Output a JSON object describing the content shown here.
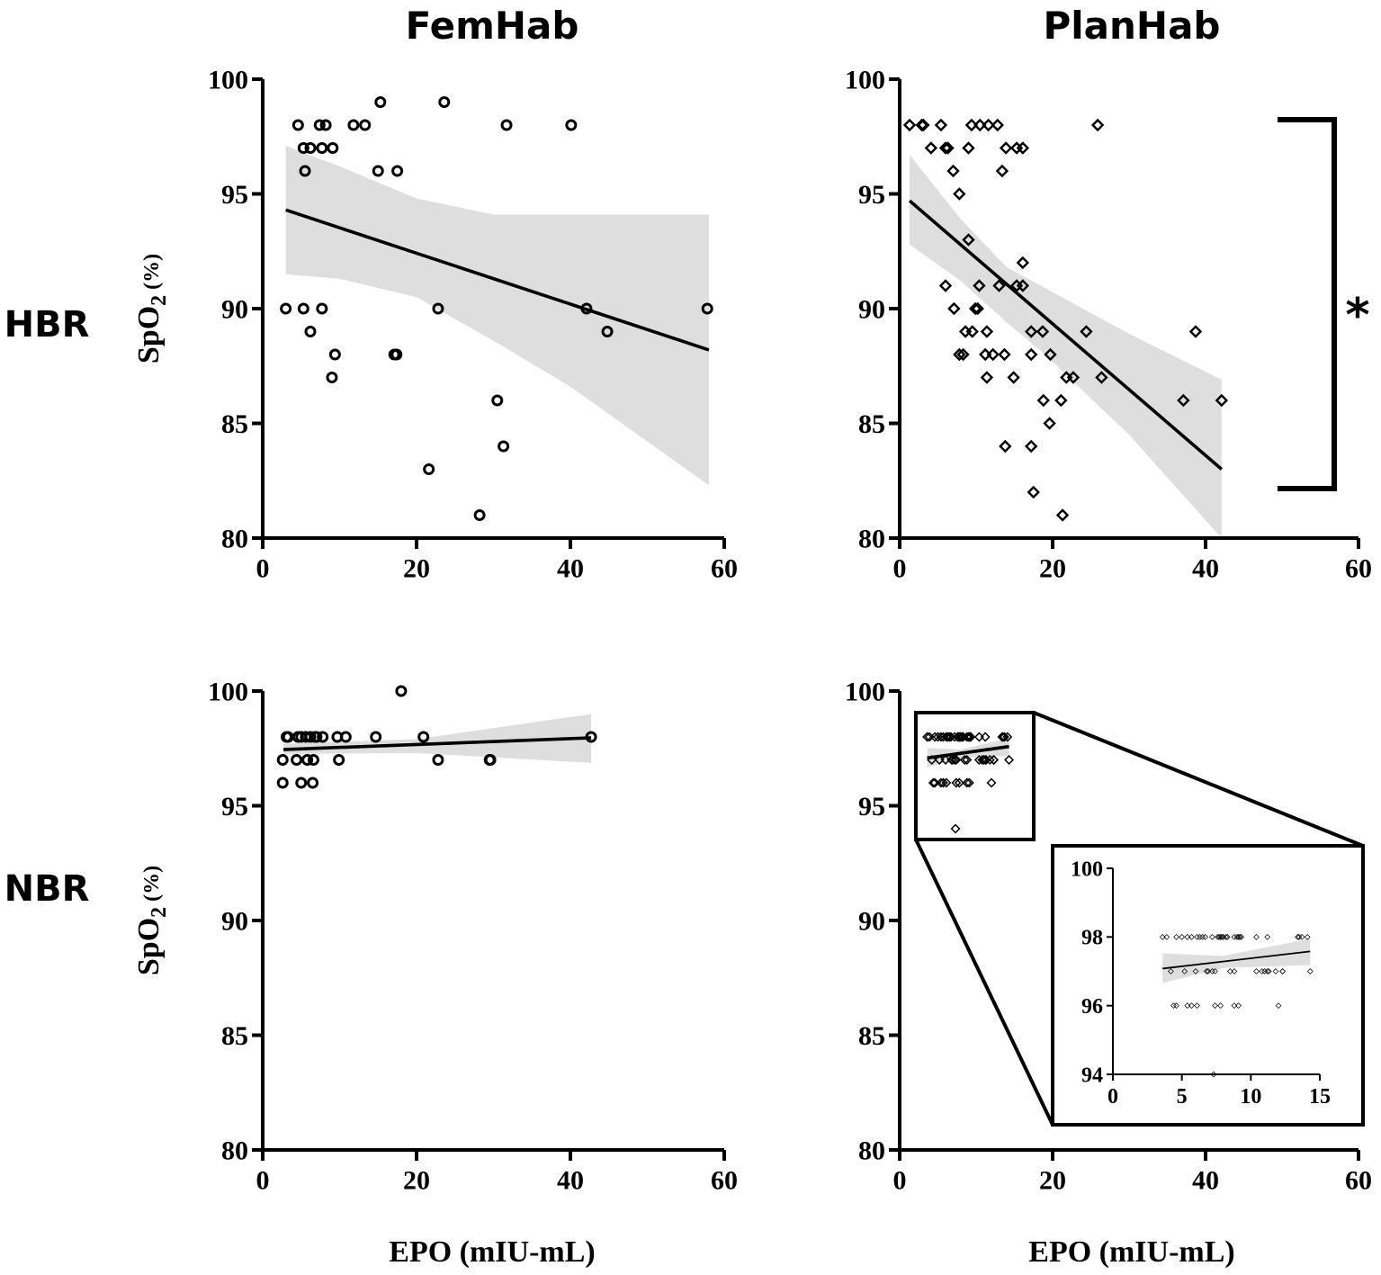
{
  "columns": [
    "FemHab",
    "PlanHab"
  ],
  "rows": [
    "HBR",
    "NBR"
  ],
  "ylabel_main": "SpO",
  "ylabel_sub": "2",
  "ylabel_unit": " (%)",
  "xlabel": "EPO (mIU-mL)",
  "significance": "*",
  "colors": {
    "ink": "#000000",
    "band": "#dedede"
  },
  "chart_data": [
    {
      "id": "femhab-hbr",
      "type": "scatter",
      "marker": "circle",
      "xlim": [
        0,
        60
      ],
      "ylim": [
        80,
        100
      ],
      "xticks": [
        0,
        20,
        40,
        60
      ],
      "yticks": [
        80,
        85,
        90,
        95,
        100
      ],
      "points": [
        [
          3,
          90
        ],
        [
          4.6,
          98
        ],
        [
          5.3,
          97
        ],
        [
          5.5,
          96
        ],
        [
          5.3,
          90
        ],
        [
          6.2,
          97
        ],
        [
          6.2,
          89
        ],
        [
          7.4,
          98
        ],
        [
          8.2,
          98
        ],
        [
          7.7,
          97
        ],
        [
          7.7,
          90
        ],
        [
          9.1,
          97
        ],
        [
          9.4,
          88
        ],
        [
          9,
          87
        ],
        [
          11.8,
          98
        ],
        [
          13.3,
          98
        ],
        [
          15.3,
          99
        ],
        [
          15,
          96
        ],
        [
          17.5,
          96
        ],
        [
          17.1,
          88
        ],
        [
          17.4,
          88
        ],
        [
          21.6,
          83
        ],
        [
          22.8,
          90
        ],
        [
          23.6,
          99
        ],
        [
          28.2,
          81
        ],
        [
          30.5,
          86
        ],
        [
          31.3,
          84
        ],
        [
          31.7,
          98
        ],
        [
          40.1,
          98
        ],
        [
          42.1,
          90
        ],
        [
          44.8,
          89
        ],
        [
          57.8,
          90
        ]
      ],
      "fit": [
        [
          3,
          94.3
        ],
        [
          58,
          88.2
        ]
      ],
      "ci_upper": [
        [
          3,
          97.1
        ],
        [
          10,
          96.2
        ],
        [
          20,
          94.8
        ],
        [
          30,
          94.1
        ],
        [
          40,
          94.1
        ],
        [
          58,
          94.1
        ]
      ],
      "ci_lower": [
        [
          3,
          91.5
        ],
        [
          10,
          91.3
        ],
        [
          20,
          90.5
        ],
        [
          30,
          88.6
        ],
        [
          40,
          86.6
        ],
        [
          58,
          82.3
        ]
      ]
    },
    {
      "id": "planhab-hbr",
      "type": "scatter",
      "marker": "diamond",
      "xlim": [
        0,
        60
      ],
      "ylim": [
        80,
        100
      ],
      "xticks": [
        0,
        20,
        40,
        60
      ],
      "yticks": [
        80,
        85,
        90,
        95,
        100
      ],
      "points": [
        [
          1.3,
          98
        ],
        [
          2.9,
          98
        ],
        [
          3.1,
          98
        ],
        [
          5.4,
          98
        ],
        [
          9.4,
          98
        ],
        [
          10.5,
          98
        ],
        [
          11.6,
          98
        ],
        [
          12.8,
          98
        ],
        [
          25.9,
          98
        ],
        [
          4.1,
          97
        ],
        [
          6.0,
          97
        ],
        [
          6.3,
          97
        ],
        [
          9.0,
          97
        ],
        [
          13.9,
          97
        ],
        [
          15.3,
          97
        ],
        [
          16.1,
          97
        ],
        [
          7.0,
          96
        ],
        [
          13.4,
          96
        ],
        [
          7.8,
          95
        ],
        [
          9.0,
          93
        ],
        [
          16.1,
          92
        ],
        [
          6.0,
          91
        ],
        [
          10.4,
          91
        ],
        [
          13.0,
          91
        ],
        [
          15.3,
          91
        ],
        [
          16.1,
          91
        ],
        [
          7.1,
          90
        ],
        [
          9.9,
          90
        ],
        [
          10.2,
          90
        ],
        [
          8.6,
          89
        ],
        [
          9.5,
          89
        ],
        [
          11.4,
          89
        ],
        [
          17.2,
          89
        ],
        [
          18.7,
          89
        ],
        [
          24.4,
          89
        ],
        [
          38.7,
          89
        ],
        [
          7.8,
          88
        ],
        [
          8.3,
          88
        ],
        [
          11.2,
          88
        ],
        [
          12.2,
          88
        ],
        [
          13.7,
          88
        ],
        [
          17.2,
          88
        ],
        [
          19.7,
          88
        ],
        [
          11.4,
          87
        ],
        [
          14.9,
          87
        ],
        [
          21.8,
          87
        ],
        [
          22.7,
          87
        ],
        [
          26.4,
          87
        ],
        [
          18.8,
          86
        ],
        [
          21.1,
          86
        ],
        [
          37.1,
          86
        ],
        [
          42.1,
          86
        ],
        [
          19.6,
          85
        ],
        [
          13.8,
          84
        ],
        [
          17.2,
          84
        ],
        [
          17.5,
          82
        ],
        [
          21.3,
          81
        ]
      ],
      "fit": [
        [
          1.3,
          94.7
        ],
        [
          42.1,
          83.0
        ]
      ],
      "ci_upper": [
        [
          1.3,
          96.7
        ],
        [
          8,
          93.9
        ],
        [
          14,
          91.8
        ],
        [
          19,
          90.9
        ],
        [
          30,
          88.9
        ],
        [
          42.1,
          86.9
        ]
      ],
      "ci_lower": [
        [
          1.3,
          92.8
        ],
        [
          8,
          91.2
        ],
        [
          14,
          89.4
        ],
        [
          19,
          88.0
        ],
        [
          30,
          84.5
        ],
        [
          42.1,
          79.6
        ]
      ]
    },
    {
      "id": "femhab-nbr",
      "type": "scatter",
      "marker": "circle",
      "xlim": [
        0,
        60
      ],
      "ylim": [
        80,
        100
      ],
      "xticks": [
        0,
        20,
        40,
        60
      ],
      "yticks": [
        80,
        85,
        90,
        95,
        100
      ],
      "points": [
        [
          3.1,
          98
        ],
        [
          3.3,
          98
        ],
        [
          4.6,
          98
        ],
        [
          5.0,
          98
        ],
        [
          5.6,
          98
        ],
        [
          6.2,
          98
        ],
        [
          6.8,
          98
        ],
        [
          7.0,
          98
        ],
        [
          7.8,
          98
        ],
        [
          9.7,
          98
        ],
        [
          10.8,
          98
        ],
        [
          14.7,
          98
        ],
        [
          20.9,
          98
        ],
        [
          42.7,
          98
        ],
        [
          18.0,
          100
        ],
        [
          2.6,
          97
        ],
        [
          4.4,
          97
        ],
        [
          5.8,
          97
        ],
        [
          6.6,
          97
        ],
        [
          9.9,
          97
        ],
        [
          22.8,
          97
        ],
        [
          29.5,
          97
        ],
        [
          29.6,
          97
        ],
        [
          2.6,
          96
        ],
        [
          5.0,
          96
        ],
        [
          6.5,
          96
        ]
      ],
      "fit": [
        [
          2.7,
          97.45
        ],
        [
          42.7,
          97.96
        ]
      ],
      "ci_upper": [
        [
          2.7,
          97.7
        ],
        [
          20,
          97.9
        ],
        [
          42.7,
          99.0
        ]
      ],
      "ci_lower": [
        [
          2.7,
          97.26
        ],
        [
          20,
          97.3
        ],
        [
          42.7,
          96.87
        ]
      ]
    },
    {
      "id": "planhab-nbr",
      "type": "scatter",
      "marker": "diamond",
      "xlim": [
        0,
        60
      ],
      "ylim": [
        80,
        100
      ],
      "xticks": [
        0,
        20,
        40,
        60
      ],
      "yticks": [
        80,
        85,
        90,
        95,
        100
      ],
      "points": "same-as-inset",
      "fit": [
        [
          3.6,
          97.08
        ],
        [
          14.3,
          97.58
        ]
      ],
      "ci_upper": [
        [
          3.6,
          97.52
        ],
        [
          8,
          97.45
        ],
        [
          14.3,
          97.95
        ]
      ],
      "ci_lower": [
        [
          3.6,
          96.66
        ],
        [
          8,
          97.1
        ],
        [
          14.3,
          97.18
        ]
      ]
    },
    {
      "id": "planhab-nbr-inset",
      "type": "scatter",
      "marker": "diamond",
      "xlim": [
        0,
        15
      ],
      "ylim": [
        94,
        100
      ],
      "xticks": [
        0,
        5,
        10,
        15
      ],
      "yticks": [
        94,
        96,
        98,
        100
      ],
      "points": [
        [
          3.6,
          98
        ],
        [
          3.9,
          98
        ],
        [
          4.6,
          98
        ],
        [
          5.0,
          98
        ],
        [
          5.4,
          98
        ],
        [
          5.7,
          98
        ],
        [
          6.1,
          98
        ],
        [
          6.3,
          98
        ],
        [
          6.5,
          98
        ],
        [
          6.7,
          98
        ],
        [
          7.2,
          98
        ],
        [
          7.6,
          98
        ],
        [
          7.7,
          98
        ],
        [
          7.8,
          98
        ],
        [
          7.9,
          98
        ],
        [
          8.0,
          98
        ],
        [
          8.2,
          98
        ],
        [
          8.3,
          98
        ],
        [
          8.8,
          98
        ],
        [
          9.0,
          98
        ],
        [
          9.1,
          98
        ],
        [
          9.2,
          98
        ],
        [
          9.3,
          98
        ],
        [
          10.4,
          98
        ],
        [
          11.2,
          98
        ],
        [
          13.4,
          98
        ],
        [
          13.5,
          98
        ],
        [
          13.7,
          98
        ],
        [
          14.1,
          98
        ],
        [
          4.2,
          97
        ],
        [
          5.2,
          97
        ],
        [
          6.0,
          97
        ],
        [
          6.8,
          97
        ],
        [
          6.9,
          97
        ],
        [
          7.2,
          97
        ],
        [
          7.4,
          97
        ],
        [
          8.5,
          97
        ],
        [
          8.8,
          97
        ],
        [
          10.4,
          97
        ],
        [
          10.8,
          97
        ],
        [
          11.0,
          97
        ],
        [
          11.2,
          97
        ],
        [
          11.3,
          97
        ],
        [
          11.8,
          97
        ],
        [
          12.3,
          97
        ],
        [
          12.3,
          97
        ],
        [
          14.3,
          97
        ],
        [
          4.4,
          96
        ],
        [
          4.6,
          96
        ],
        [
          5.4,
          96
        ],
        [
          5.7,
          96
        ],
        [
          6.1,
          96
        ],
        [
          7.4,
          96
        ],
        [
          7.8,
          96
        ],
        [
          8.8,
          96
        ],
        [
          9.1,
          96
        ],
        [
          12.0,
          96
        ],
        [
          7.3,
          94
        ]
      ],
      "fit": [
        [
          3.6,
          97.08
        ],
        [
          14.3,
          97.58
        ]
      ],
      "ci_upper": [
        [
          3.6,
          97.52
        ],
        [
          8,
          97.45
        ],
        [
          14.3,
          97.95
        ]
      ],
      "ci_lower": [
        [
          3.6,
          96.66
        ],
        [
          8,
          97.1
        ],
        [
          14.3,
          97.18
        ]
      ]
    }
  ]
}
